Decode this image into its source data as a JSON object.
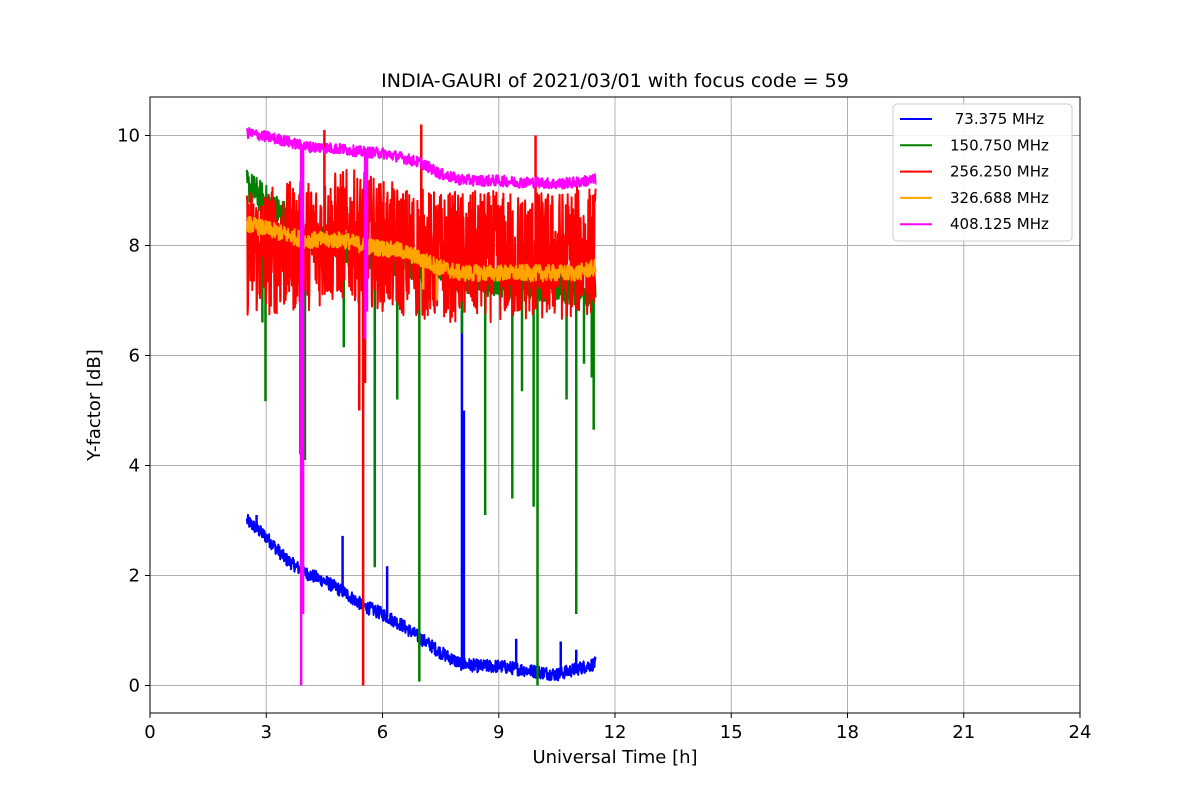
{
  "chart_data": {
    "type": "line",
    "title": "INDIA-GAURI of 2021/03/01 with focus code = 59",
    "xlabel": "Universal Time [h]",
    "ylabel": "Y-factor [dB]",
    "xlim": [
      0,
      24
    ],
    "ylim": [
      -0.5,
      10.7
    ],
    "xticks": [
      0,
      3,
      6,
      9,
      12,
      15,
      18,
      21,
      24
    ],
    "yticks": [
      0,
      2,
      4,
      6,
      8,
      10
    ],
    "grid": true,
    "legend_position": "top-right",
    "series": [
      {
        "name": " 73.375 MHz",
        "color": "#0000ff",
        "band": 0.12,
        "x": [
          2.5,
          3.0,
          3.5,
          4.0,
          4.5,
          5.0,
          5.5,
          6.0,
          6.5,
          7.0,
          7.5,
          8.0,
          8.5,
          9.0,
          9.5,
          10.0,
          10.5,
          11.0,
          11.5
        ],
        "values": [
          3.0,
          2.7,
          2.3,
          2.05,
          1.9,
          1.7,
          1.45,
          1.3,
          1.1,
          0.85,
          0.6,
          0.4,
          0.35,
          0.35,
          0.3,
          0.25,
          0.2,
          0.3,
          0.4
        ],
        "spikes": [
          [
            2.75,
            3.1
          ],
          [
            4.97,
            2.72
          ],
          [
            6.12,
            2.17
          ],
          [
            8.05,
            6.8
          ],
          [
            8.1,
            5.0
          ],
          [
            9.45,
            0.85
          ],
          [
            10.6,
            0.8
          ],
          [
            11.0,
            0.65
          ]
        ]
      },
      {
        "name": "150.750 MHz",
        "color": "#008000",
        "band": 0.3,
        "x": [
          2.5,
          3.0,
          3.5,
          4.0,
          4.5,
          5.0,
          5.5,
          6.0,
          6.5,
          7.0,
          7.5,
          8.0,
          8.5,
          9.0,
          9.5,
          10.0,
          10.5,
          11.0,
          11.5
        ],
        "values": [
          9.1,
          8.8,
          8.5,
          8.2,
          8.1,
          8.0,
          7.9,
          7.8,
          7.7,
          7.6,
          7.5,
          7.45,
          7.4,
          7.35,
          7.3,
          7.3,
          7.25,
          7.2,
          7.2
        ],
        "spikes": [
          [
            2.9,
            6.6
          ],
          [
            2.98,
            5.17
          ],
          [
            3.88,
            4.2
          ],
          [
            4.0,
            4.1
          ],
          [
            5.0,
            6.15
          ],
          [
            5.8,
            2.15
          ],
          [
            6.38,
            5.2
          ],
          [
            6.95,
            0.07
          ],
          [
            8.05,
            6.4
          ],
          [
            8.65,
            3.1
          ],
          [
            9.35,
            3.4
          ],
          [
            9.6,
            5.35
          ],
          [
            9.9,
            3.25
          ],
          [
            10.0,
            0.0
          ],
          [
            10.75,
            5.2
          ],
          [
            11.0,
            1.3
          ],
          [
            11.2,
            5.85
          ],
          [
            11.45,
            4.65
          ],
          [
            11.4,
            5.6
          ]
        ]
      },
      {
        "name": "256.250 MHz",
        "color": "#ff0000",
        "band": 1.2,
        "x": [
          2.5,
          3.0,
          3.5,
          4.0,
          4.5,
          5.0,
          5.5,
          6.0,
          6.5,
          7.0,
          7.5,
          8.0,
          8.5,
          9.0,
          9.5,
          10.0,
          10.5,
          11.0,
          11.5
        ],
        "values": [
          7.9,
          7.9,
          7.95,
          8.0,
          8.1,
          8.2,
          8.15,
          8.0,
          7.9,
          7.85,
          7.8,
          7.8,
          7.8,
          7.8,
          7.8,
          7.8,
          7.8,
          7.9,
          7.9
        ],
        "spikes": [
          [
            4.5,
            10.1
          ],
          [
            5.5,
            0.0
          ],
          [
            5.4,
            5.0
          ],
          [
            5.55,
            5.5
          ],
          [
            7.0,
            10.2
          ],
          [
            9.95,
            10.0
          ]
        ]
      },
      {
        "name": "326.688 MHz",
        "color": "#ffa500",
        "band": 0.15,
        "x": [
          2.5,
          3.0,
          3.5,
          4.0,
          4.5,
          5.0,
          5.5,
          6.0,
          6.5,
          7.0,
          7.5,
          8.0,
          8.5,
          9.0,
          9.5,
          10.0,
          10.5,
          11.0,
          11.5
        ],
        "values": [
          8.4,
          8.3,
          8.2,
          8.1,
          8.1,
          8.1,
          8.0,
          7.95,
          7.9,
          7.75,
          7.6,
          7.5,
          7.5,
          7.5,
          7.5,
          7.5,
          7.5,
          7.5,
          7.6
        ],
        "spikes": [
          [
            7.05,
            7.2
          ],
          [
            7.4,
            7.0
          ]
        ]
      },
      {
        "name": "408.125 MHz",
        "color": "#ff00ff",
        "band": 0.1,
        "x": [
          2.5,
          3.0,
          3.5,
          4.0,
          4.5,
          5.0,
          5.5,
          6.0,
          6.5,
          7.0,
          7.5,
          8.0,
          8.5,
          9.0,
          9.5,
          10.0,
          10.5,
          11.0,
          11.5
        ],
        "values": [
          10.05,
          9.98,
          9.9,
          9.8,
          9.78,
          9.75,
          9.7,
          9.68,
          9.6,
          9.5,
          9.3,
          9.2,
          9.18,
          9.18,
          9.15,
          9.15,
          9.12,
          9.15,
          9.2
        ],
        "spikes": [
          [
            3.9,
            0.0
          ],
          [
            3.95,
            1.3
          ],
          [
            5.55,
            6.3
          ],
          [
            5.6,
            6.8
          ]
        ]
      }
    ]
  }
}
